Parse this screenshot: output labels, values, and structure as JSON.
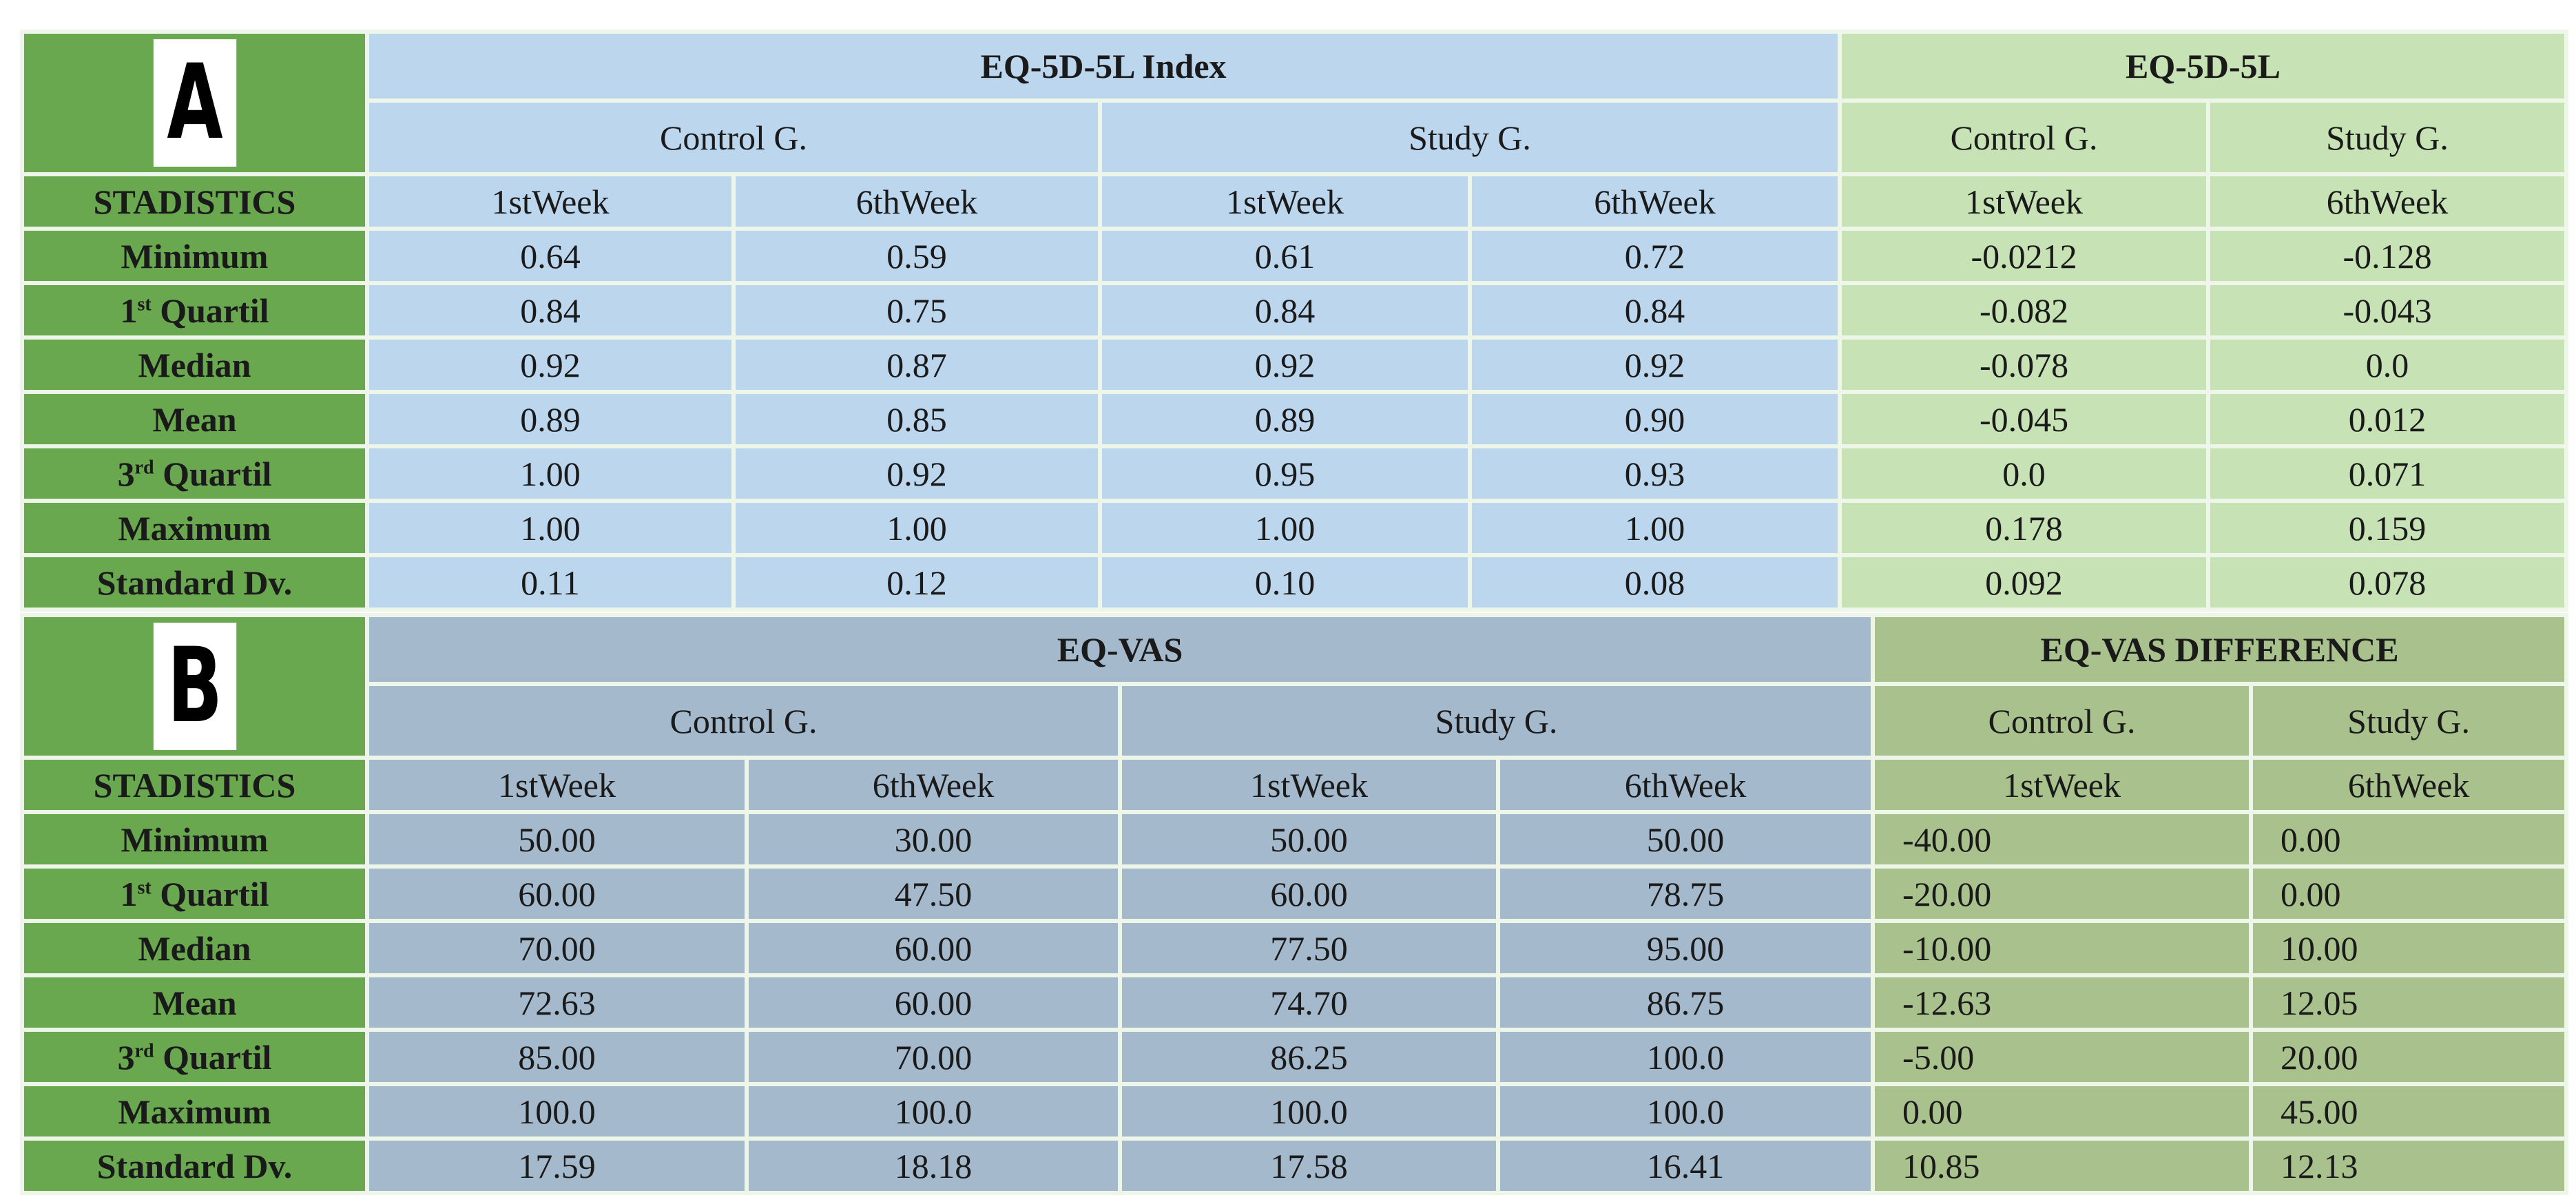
{
  "stats_header": "STADISTICS",
  "row_labels": [
    {
      "base": "Minimum",
      "sup": "",
      "rest": ""
    },
    {
      "base": "1",
      "sup": "st",
      "rest": " Quartil"
    },
    {
      "base": "Median",
      "sup": "",
      "rest": ""
    },
    {
      "base": "Mean",
      "sup": "",
      "rest": ""
    },
    {
      "base": "3",
      "sup": "rd",
      "rest": " Quartil"
    },
    {
      "base": "Maximum",
      "sup": "",
      "rest": ""
    },
    {
      "base": "Standard Dv.",
      "sup": "",
      "rest": ""
    }
  ],
  "panels": [
    {
      "letter": "A",
      "group1_title": "EQ-5D-5L Index",
      "group2_title": "EQ-5D-5L",
      "group1_subgroups": [
        "Control G.",
        "Study G."
      ],
      "group2_subgroups": [
        "Control G.",
        "Study G."
      ],
      "columns": [
        "1stWeek",
        "6thWeek",
        "1stWeek",
        "6thWeek",
        "1stWeek",
        "6thWeek"
      ],
      "rows": [
        [
          "0.64",
          "0.59",
          "0.61",
          "0.72",
          "-0.0212",
          "-0.128"
        ],
        [
          "0.84",
          "0.75",
          "0.84",
          "0.84",
          "-0.082",
          "-0.043"
        ],
        [
          "0.92",
          "0.87",
          "0.92",
          "0.92",
          "-0.078",
          "0.0"
        ],
        [
          "0.89",
          "0.85",
          "0.89",
          "0.90",
          "-0.045",
          "0.012"
        ],
        [
          "1.00",
          "0.92",
          "0.95",
          "0.93",
          "0.0",
          "0.071"
        ],
        [
          "1.00",
          "1.00",
          "1.00",
          "1.00",
          "0.178",
          "0.159"
        ],
        [
          "0.11",
          "0.12",
          "0.10",
          "0.08",
          "0.092",
          "0.078"
        ]
      ]
    },
    {
      "letter": "B",
      "group1_title": "EQ-VAS",
      "group2_title": "EQ-VAS DIFFERENCE",
      "group1_subgroups": [
        "Control G.",
        "Study G."
      ],
      "group2_subgroups": [
        "Control G.",
        "Study G."
      ],
      "columns": [
        "1stWeek",
        "6thWeek",
        "1stWeek",
        "6thWeek",
        "1stWeek",
        "6thWeek"
      ],
      "rows": [
        [
          "50.00",
          "30.00",
          "50.00",
          "50.00",
          "-40.00",
          "0.00"
        ],
        [
          "60.00",
          "47.50",
          "60.00",
          "78.75",
          "-20.00",
          "0.00"
        ],
        [
          "70.00",
          "60.00",
          "77.50",
          "95.00",
          "-10.00",
          "10.00"
        ],
        [
          "72.63",
          "60.00",
          "74.70",
          "86.75",
          "-12.63",
          "12.05"
        ],
        [
          "85.00",
          "70.00",
          "86.25",
          "100.0",
          "-5.00",
          "20.00"
        ],
        [
          "100.0",
          "100.0",
          "100.0",
          "100.0",
          "0.00",
          "45.00"
        ],
        [
          "17.59",
          "18.18",
          "17.58",
          "16.41",
          "10.85",
          "12.13"
        ]
      ]
    }
  ]
}
